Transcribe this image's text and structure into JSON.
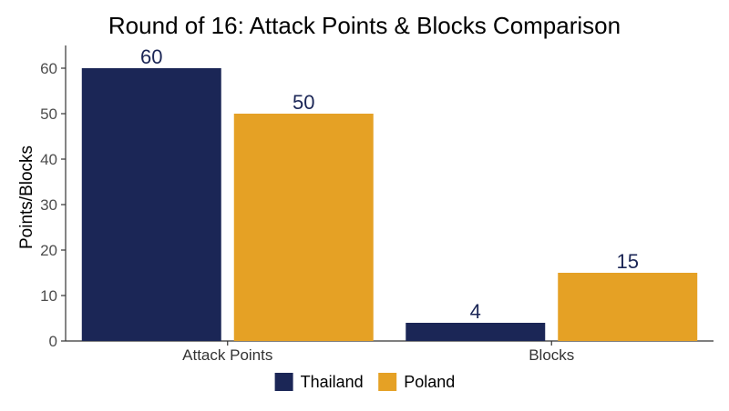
{
  "chart_data": {
    "type": "bar",
    "title": "Round of 16: Attack Points & Blocks Comparison",
    "xlabel": "",
    "ylabel": "Points/Blocks",
    "categories": [
      "Attack Points",
      "Blocks"
    ],
    "series": [
      {
        "name": "Thailand",
        "values": [
          60,
          4
        ],
        "color": "#1b2656"
      },
      {
        "name": "Poland",
        "values": [
          50,
          15
        ],
        "color": "#e5a125"
      }
    ],
    "ylim": [
      0,
      65
    ],
    "yticks": [
      0,
      10,
      20,
      30,
      40,
      50,
      60
    ],
    "data_labels": true,
    "data_label_color": "#1b2656",
    "grid": false,
    "legend_position": "bottom"
  }
}
